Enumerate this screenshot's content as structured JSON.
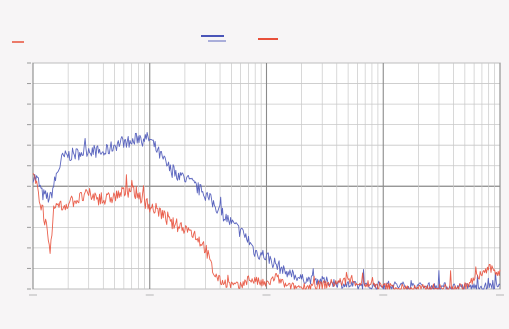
{
  "chart_data": {
    "type": "line",
    "title": "",
    "xlabel": "",
    "ylabel": "",
    "x_scale": "log",
    "xlim": [
      10,
      100000
    ],
    "ylim": [
      -10,
      100
    ],
    "y_ticks": [
      -10,
      0,
      10,
      20,
      30,
      40,
      50,
      60,
      70,
      80,
      90,
      100
    ],
    "grid": true,
    "legend_position": "top-center",
    "colors": {
      "series_blue": "#4a55b8",
      "series_red": "#e8503a",
      "grid_light": "#c8c8c8",
      "grid_dark": "#8a8a8a",
      "background": "#ffffff"
    },
    "series": [
      {
        "color": "#4a55b8",
        "x": [
          10,
          11,
          12,
          14,
          16,
          18,
          20,
          25,
          30,
          40,
          50,
          60,
          70,
          80,
          100,
          120,
          150,
          200,
          300,
          400,
          500,
          600,
          700,
          800,
          1000,
          1200,
          1500,
          2000,
          3000,
          4000,
          5000,
          7000,
          10000,
          20000,
          50000,
          100000
        ],
        "values": [
          45,
          43,
          36,
          34,
          46,
          54,
          55,
          56,
          58,
          56,
          60,
          62,
          61,
          64,
          63,
          56,
          48,
          44,
          36,
          28,
          22,
          18,
          14,
          8,
          6,
          2,
          -2,
          -5,
          -6,
          -7,
          -8,
          -9,
          -8,
          -9,
          -9,
          -9
        ]
      },
      {
        "color": "#e8503a",
        "x": [
          10,
          11,
          12,
          13,
          14,
          15,
          16,
          18,
          20,
          25,
          30,
          40,
          50,
          60,
          70,
          80,
          100,
          120,
          150,
          200,
          250,
          300,
          350,
          400,
          500,
          600,
          700,
          800,
          1000,
          1200,
          1500,
          2000,
          3000,
          5000,
          10000,
          20000,
          50000,
          80000,
          100000
        ],
        "values": [
          45,
          38,
          30,
          20,
          5,
          28,
          31,
          30,
          32,
          34,
          36,
          33,
          35,
          37,
          38,
          36,
          30,
          28,
          22,
          20,
          16,
          10,
          -2,
          -6,
          -8,
          -9,
          -5,
          -6,
          -8,
          -4,
          -9,
          -9,
          -8,
          -6,
          -9,
          -10,
          -9,
          0,
          -2
        ]
      }
    ]
  }
}
